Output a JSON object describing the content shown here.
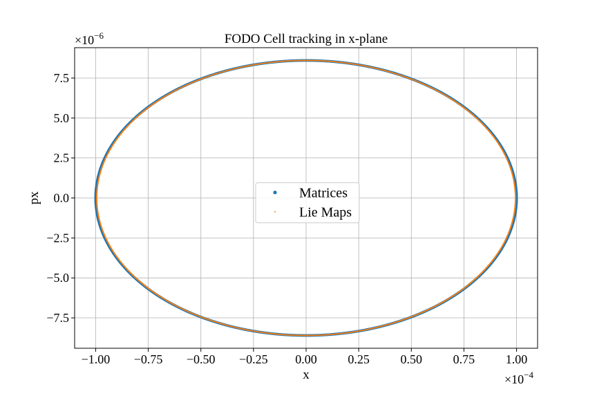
{
  "chart_data": {
    "type": "scatter",
    "title": "FODO Cell tracking in x-plane",
    "xlabel": "x",
    "ylabel": "px",
    "x_multiplier": "×10",
    "x_multiplier_exp": "−4",
    "y_multiplier": "×10",
    "y_multiplier_exp": "−6",
    "xlim": [
      -1.1,
      1.1
    ],
    "ylim": [
      -9.4,
      9.4
    ],
    "x_ticks": [
      -1.0,
      -0.75,
      -0.5,
      -0.25,
      0.0,
      0.25,
      0.5,
      0.75,
      1.0
    ],
    "x_tick_labels": [
      "−1.00",
      "−0.75",
      "−0.50",
      "−0.25",
      "0.00",
      "0.25",
      "0.50",
      "0.75",
      "1.00"
    ],
    "y_ticks": [
      -7.5,
      -5.0,
      -2.5,
      0.0,
      2.5,
      5.0,
      7.5
    ],
    "y_tick_labels": [
      "−7.5",
      "−5.0",
      "−2.5",
      "0.0",
      "2.5",
      "5.0",
      "7.5"
    ],
    "grid": true,
    "legend_position": "center",
    "series": [
      {
        "name": "Matrices",
        "color": "#1f77b4",
        "marker": "dot",
        "shape": "ellipse",
        "x_amplitude": 1.0,
        "y_amplitude": 8.6
      },
      {
        "name": "Lie Maps",
        "color": "#ff7f0e",
        "marker": "point",
        "shape": "ellipse",
        "x_amplitude": 0.995,
        "y_amplitude": 8.6
      }
    ]
  }
}
